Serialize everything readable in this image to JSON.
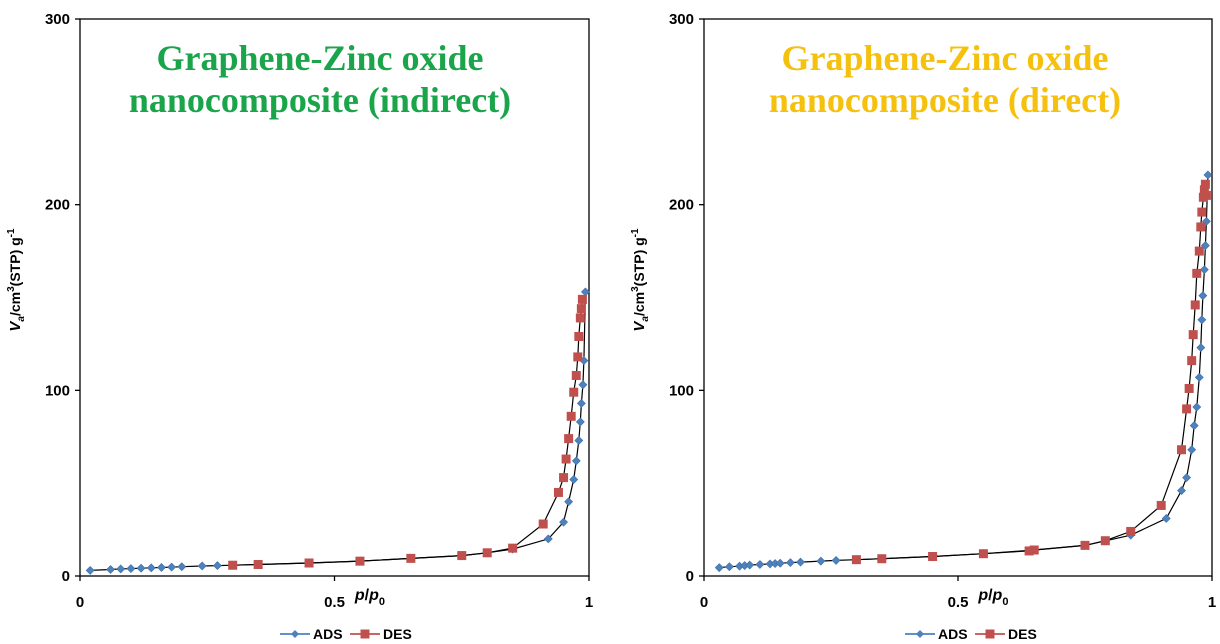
{
  "chart_data": [
    {
      "type": "scatter",
      "title_lines": [
        "Graphene-Zinc oxide",
        "nanocomposite (indirect)"
      ],
      "title_color": "#1aa54b",
      "xlim": [
        0,
        1
      ],
      "ylim": [
        0,
        300
      ],
      "x_ticks": [
        "0",
        "0.5",
        "1"
      ],
      "y_ticks": [
        "0",
        "100",
        "200",
        "300"
      ],
      "xlabel": {
        "base": "p",
        "slash": "/",
        "base2": "p",
        "sub": "0"
      },
      "ylabel": {
        "v": "V",
        "sub": "a",
        "mid": "/cm",
        "sup": "3",
        "mid2": "(STP) g",
        "sup2": "-1"
      },
      "legend": [
        "ADS",
        "DES"
      ],
      "series": [
        {
          "name": "ADS",
          "color": "#4f81bd",
          "marker": "diamond",
          "x": [
            0.02,
            0.06,
            0.08,
            0.1,
            0.12,
            0.14,
            0.16,
            0.18,
            0.2,
            0.24,
            0.27,
            0.3,
            0.35,
            0.45,
            0.55,
            0.65,
            0.75,
            0.8,
            0.85,
            0.92,
            0.95,
            0.96,
            0.97,
            0.975,
            0.98,
            0.983,
            0.985,
            0.988,
            0.99,
            0.993
          ],
          "y": [
            3.0,
            3.5,
            3.8,
            4.0,
            4.2,
            4.4,
            4.6,
            4.8,
            5.0,
            5.4,
            5.6,
            5.8,
            6.2,
            7.0,
            8.0,
            9.5,
            11.0,
            12.5,
            14.5,
            20,
            29,
            40,
            52,
            62,
            73,
            83,
            93,
            103,
            116,
            153
          ]
        },
        {
          "name": "DES",
          "color": "#c0504d",
          "marker": "square",
          "x": [
            0.3,
            0.35,
            0.45,
            0.55,
            0.65,
            0.75,
            0.8,
            0.85,
            0.91,
            0.94,
            0.95,
            0.955,
            0.96,
            0.965,
            0.97,
            0.975,
            0.978,
            0.98,
            0.983,
            0.985,
            0.987
          ],
          "y": [
            5.8,
            6.2,
            7.0,
            8.0,
            9.5,
            11.0,
            12.5,
            15.0,
            28,
            45,
            53,
            63,
            74,
            86,
            99,
            108,
            118,
            129,
            139,
            144,
            149
          ]
        }
      ]
    },
    {
      "type": "scatter",
      "title_lines": [
        "Graphene-Zinc oxide",
        "nanocomposite (direct)"
      ],
      "title_color": "#f5c10e",
      "xlim": [
        0,
        1
      ],
      "ylim": [
        0,
        300
      ],
      "x_ticks": [
        "0",
        "0.5",
        "1"
      ],
      "y_ticks": [
        "0",
        "100",
        "200",
        "300"
      ],
      "xlabel": {
        "base": "p",
        "slash": "/",
        "base2": "p",
        "sub": "0"
      },
      "ylabel": {
        "v": "V",
        "sub": "a",
        "mid": "/cm",
        "sup": "3",
        "mid2": "(STP) g",
        "sup2": "-1"
      },
      "legend": [
        "ADS",
        "DES"
      ],
      "series": [
        {
          "name": "ADS",
          "color": "#4f81bd",
          "marker": "diamond",
          "x": [
            0.03,
            0.05,
            0.07,
            0.08,
            0.09,
            0.11,
            0.13,
            0.14,
            0.15,
            0.17,
            0.19,
            0.23,
            0.26,
            0.3,
            0.35,
            0.45,
            0.55,
            0.65,
            0.75,
            0.84,
            0.91,
            0.94,
            0.95,
            0.96,
            0.965,
            0.97,
            0.975,
            0.978,
            0.98,
            0.982,
            0.985,
            0.987,
            0.989,
            0.992
          ],
          "y": [
            4.5,
            5.0,
            5.3,
            5.6,
            5.9,
            6.2,
            6.5,
            6.7,
            6.9,
            7.2,
            7.5,
            8.0,
            8.4,
            8.8,
            9.3,
            10.5,
            12.0,
            14.0,
            16.5,
            22.0,
            31.0,
            46.0,
            53.0,
            68.0,
            81.0,
            91.0,
            107.0,
            123.0,
            138.0,
            151.0,
            165.0,
            178.0,
            191.0,
            216.0
          ]
        },
        {
          "name": "DES",
          "color": "#c0504d",
          "marker": "square",
          "x": [
            0.3,
            0.35,
            0.45,
            0.55,
            0.64,
            0.65,
            0.75,
            0.79,
            0.84,
            0.9,
            0.94,
            0.95,
            0.955,
            0.96,
            0.963,
            0.967,
            0.97,
            0.975,
            0.978,
            0.98,
            0.983,
            0.985,
            0.987,
            0.989
          ],
          "y": [
            8.8,
            9.3,
            10.5,
            12.0,
            13.5,
            14.0,
            16.5,
            19.0,
            24.0,
            38.0,
            68.0,
            90.0,
            101.0,
            116.0,
            130.0,
            146.0,
            163.0,
            175.0,
            188.0,
            196.0,
            204.0,
            208.0,
            211.0,
            205.0
          ]
        }
      ]
    }
  ]
}
